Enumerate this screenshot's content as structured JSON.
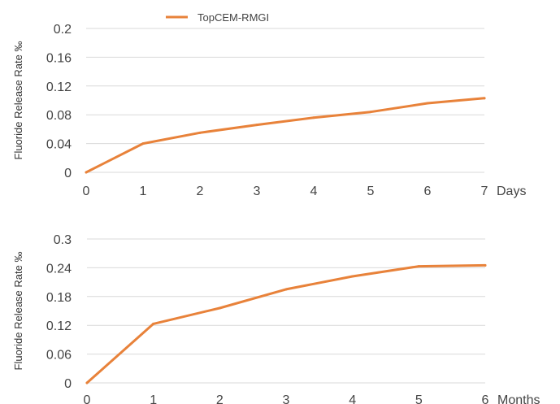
{
  "legend": {
    "label": "TopCEM-RMGI"
  },
  "colors": {
    "series": "#E8823A",
    "grid": "#D9D9D9"
  },
  "chart_data": [
    {
      "type": "line",
      "xlabel": "Days",
      "ylabel": "Fluoride Release Rate ‰",
      "x": [
        0,
        1,
        2,
        3,
        4,
        5,
        6,
        7
      ],
      "ylim": [
        0,
        0.2
      ],
      "yticks": [
        "0",
        "0.04",
        "0.08",
        "0.12",
        "0.16",
        "0.2"
      ],
      "grid": true,
      "series": [
        {
          "name": "TopCEM-RMGI",
          "values": [
            0,
            0.04,
            0.055,
            0.066,
            0.076,
            0.084,
            0.096,
            0.103
          ]
        }
      ]
    },
    {
      "type": "line",
      "xlabel": "Months",
      "ylabel": "Fluoride Release Rate ‰",
      "x": [
        0,
        1,
        2,
        3,
        4,
        5,
        6
      ],
      "ylim": [
        0,
        0.3
      ],
      "yticks": [
        "0",
        "0.06",
        "0.12",
        "0.18",
        "0.24",
        "0.3"
      ],
      "grid": true,
      "series": [
        {
          "name": "TopCEM-RMGI",
          "values": [
            0,
            0.123,
            0.156,
            0.195,
            0.222,
            0.243,
            0.245
          ]
        }
      ]
    }
  ]
}
